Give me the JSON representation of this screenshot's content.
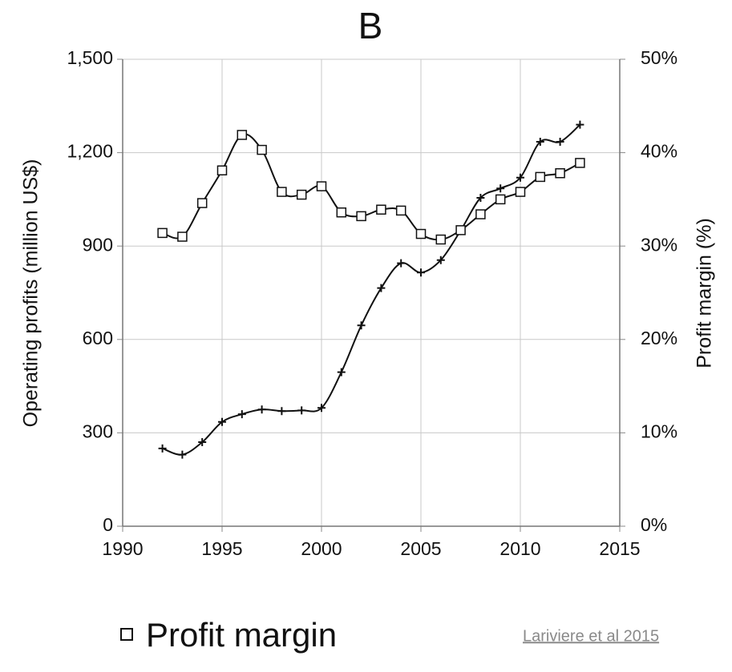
{
  "chart_data": {
    "type": "line",
    "title": "B",
    "ylabel": "Operating profits (million US$)",
    "y2label": "Profit margin (%)",
    "x": [
      1992,
      1993,
      1994,
      1995,
      1996,
      1997,
      1998,
      1999,
      2000,
      2001,
      2002,
      2003,
      2004,
      2005,
      2006,
      2007,
      2008,
      2009,
      2010,
      2011,
      2012,
      2013
    ],
    "series": [
      {
        "color": "#111111",
        "marker": "plus",
        "values": [
          250,
          230,
          270,
          335,
          360,
          375,
          370,
          372,
          380,
          495,
          645,
          765,
          845,
          815,
          855,
          950,
          1055,
          1085,
          1120,
          1235,
          1235,
          1290
        ]
      },
      {
        "name": "Profit margin",
        "color": "#111111",
        "marker": "square",
        "axis": "y2",
        "values": [
          31.4,
          31.0,
          34.6,
          38.1,
          41.9,
          40.3,
          35.8,
          35.5,
          36.4,
          33.6,
          33.2,
          33.9,
          33.8,
          31.3,
          30.7,
          31.7,
          33.4,
          35.0,
          35.8,
          37.4,
          37.8,
          38.9
        ]
      }
    ],
    "xlim": [
      1990,
      2015
    ],
    "xticks": [
      1990,
      1995,
      2000,
      2005,
      2010,
      2015
    ],
    "ylim": [
      0,
      1500
    ],
    "yticks": [
      0,
      300,
      600,
      900,
      {
        "value": 1200,
        "label": "1,200"
      },
      {
        "value": 1500,
        "label": "1,500"
      }
    ],
    "y2lim": [
      0,
      50
    ],
    "y2ticks": [
      {
        "value": 0,
        "label": "0%"
      },
      {
        "value": 10,
        "label": "10%"
      },
      {
        "value": 20,
        "label": "20%"
      },
      {
        "value": 30,
        "label": "30%"
      },
      {
        "value": 40,
        "label": "40%"
      },
      {
        "value": 50,
        "label": "50%"
      }
    ],
    "grid": true,
    "legend": "bottom-left",
    "source": "Lariviere et al 2015"
  }
}
